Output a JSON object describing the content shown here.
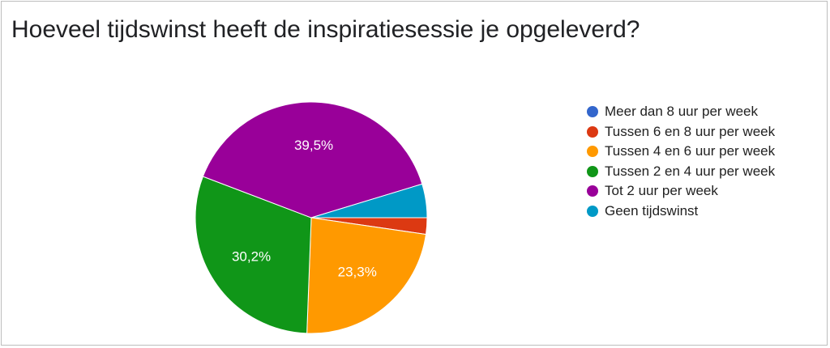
{
  "chart_data": {
    "type": "pie",
    "title": "Hoeveel tijdswinst heeft de inspiratiesessie je opgeleverd?",
    "legend_position": "right",
    "slices": [
      {
        "label": "Meer dan 8 uur per week",
        "value": 0,
        "display": "",
        "color": "#3366cc"
      },
      {
        "label": "Tussen 6 en 8 uur per week",
        "value": 2.3,
        "display": "",
        "color": "#dc3912"
      },
      {
        "label": "Tussen 4 en 6 uur per week",
        "value": 23.3,
        "display": "23,3%",
        "color": "#ff9900"
      },
      {
        "label": "Tussen 2 en 4 uur per week",
        "value": 30.2,
        "display": "30,2%",
        "color": "#109618"
      },
      {
        "label": "Tot 2 uur per week",
        "value": 39.5,
        "display": "39,5%",
        "color": "#990099"
      },
      {
        "label": "Geen tijdswinst",
        "value": 4.7,
        "display": "",
        "color": "#0099c6"
      }
    ]
  }
}
